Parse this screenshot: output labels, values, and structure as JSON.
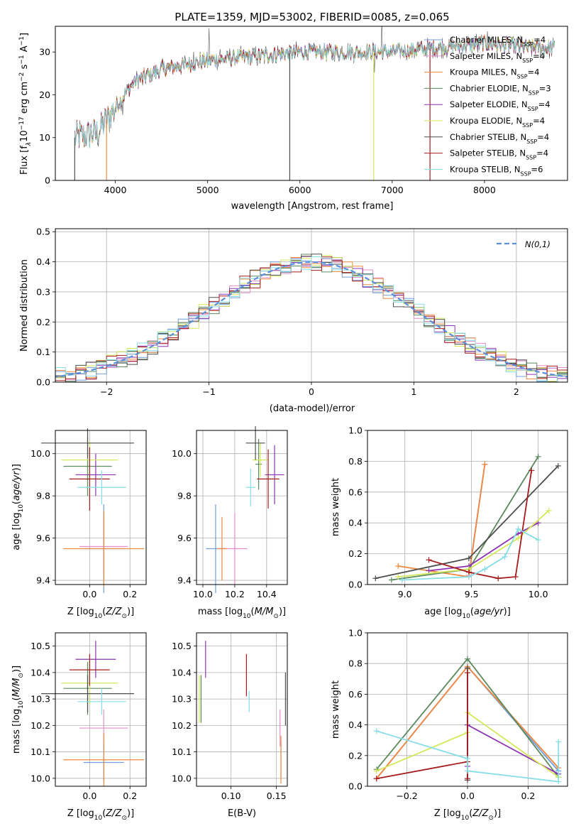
{
  "colors": [
    "#6f9fdc",
    "#e48fc9",
    "#ee8a3f",
    "#5a8a5c",
    "#8c35b0",
    "#d4e85a",
    "#4d4d4d",
    "#a61c1c",
    "#86dde6"
  ],
  "legend": [
    "Chabrier MILES, N_SSP=4",
    "Salpeter MILES, N_SSP=4",
    "Kroupa MILES, N_SSP=4",
    "Chabrier ELODIE, N_SSP=3",
    "Salpeter ELODIE, N_SSP=4",
    "Kroupa ELODIE, N_SSP=4",
    "Chabrier STELIB, N_SSP=4",
    "Salpeter STELIB, N_SSP=4",
    "Kroupa STELIB, N_SSP=6"
  ],
  "chart_data": [
    {
      "id": "spectrum",
      "type": "line",
      "title": "PLATE=1359, MJD=53002, FIBERID=0085, z=0.065",
      "xlabel": "wavelength [Angstrom, rest frame]",
      "ylabel": "Flux [f_λ10^-17 erg cm^-2 s^-1 A^-1]",
      "xlim": [
        3350,
        8900
      ],
      "ylim": [
        0,
        36
      ],
      "xticks": [
        4000,
        5000,
        6000,
        7000,
        8000
      ],
      "yticks": [
        0,
        10,
        20,
        30
      ],
      "continuum": {
        "x": [
          3560,
          3800,
          4000,
          4200,
          4500,
          5000,
          5500,
          6000,
          6500,
          7000,
          7500,
          8000,
          8500,
          8750
        ],
        "y": [
          10,
          11,
          17,
          23,
          26,
          28,
          29,
          30,
          30,
          30,
          31,
          32,
          31,
          31
        ]
      },
      "legend_loc": "right"
    },
    {
      "id": "residuals",
      "type": "histogram",
      "xlabel": "(data-model)/error",
      "ylabel": "Normed distribution",
      "xlim": [
        -2.5,
        2.5
      ],
      "ylim": [
        0,
        0.51
      ],
      "xticks": [
        -2,
        -1,
        0,
        1,
        2
      ],
      "yticks": [
        0,
        0.1,
        0.2,
        0.3,
        0.4,
        0.5
      ],
      "bin_width": 0.1,
      "normal_legend": "N(0,1)",
      "legend_loc": "top-right"
    },
    {
      "id": "age-vs-Z",
      "type": "errorbar",
      "xlabel": "Z [log10(Z/Z⊙)]",
      "ylabel": "age  [log10(age/yr)]",
      "xlim": [
        -0.17,
        0.28
      ],
      "ylim": [
        9.38,
        10.11
      ],
      "xticks": [
        0.0,
        0.2
      ],
      "yticks": [
        9.4,
        9.6,
        9.8,
        10.0
      ],
      "points": [
        {
          "x": 0.07,
          "y": 9.55,
          "xerr": 0.1,
          "yerr": 0.21
        },
        {
          "x": 0.07,
          "y": 9.56,
          "xerr": 0.12,
          "yerr": 0.15
        },
        {
          "x": 0.07,
          "y": 9.55,
          "xerr": 0.2,
          "yerr": 0.18
        },
        {
          "x": -0.01,
          "y": 9.94,
          "xerr": 0.12,
          "yerr": 0.14
        },
        {
          "x": 0.03,
          "y": 9.9,
          "xerr": 0.1,
          "yerr": 0.1
        },
        {
          "x": 0.0,
          "y": 9.97,
          "xerr": 0.14,
          "yerr": 0.09
        },
        {
          "x": -0.01,
          "y": 10.05,
          "xerr": 0.23,
          "yerr": 0.07
        },
        {
          "x": 0.0,
          "y": 9.88,
          "xerr": 0.1,
          "yerr": 0.15
        },
        {
          "x": 0.06,
          "y": 9.84,
          "xerr": 0.12,
          "yerr": 0.08
        }
      ]
    },
    {
      "id": "age-vs-mass",
      "type": "errorbar",
      "xlabel": "mass [log10(M/M⊙)]",
      "ylabel": "",
      "xlim": [
        9.96,
        10.53
      ],
      "ylim": [
        9.38,
        10.11
      ],
      "xticks": [
        10.0,
        10.2,
        10.4
      ],
      "yticks": [
        9.4,
        9.6,
        9.8,
        10.0
      ],
      "points": [
        {
          "x": 10.08,
          "y": 9.55,
          "xerr": 0.06,
          "yerr": 0.21
        },
        {
          "x": 10.2,
          "y": 9.55,
          "xerr": 0.08,
          "yerr": 0.17
        },
        {
          "x": 10.12,
          "y": 9.55,
          "xerr": 0.03,
          "yerr": 0.15
        },
        {
          "x": 10.35,
          "y": 9.95,
          "xerr": 0.02,
          "yerr": 0.12
        },
        {
          "x": 10.45,
          "y": 9.9,
          "xerr": 0.06,
          "yerr": 0.14
        },
        {
          "x": 10.36,
          "y": 9.97,
          "xerr": 0.05,
          "yerr": 0.08
        },
        {
          "x": 10.33,
          "y": 10.05,
          "xerr": 0.06,
          "yerr": 0.08
        },
        {
          "x": 10.41,
          "y": 9.88,
          "xerr": 0.07,
          "yerr": 0.14
        },
        {
          "x": 10.3,
          "y": 9.84,
          "xerr": 0.03,
          "yerr": 0.09
        }
      ]
    },
    {
      "id": "weight-vs-age",
      "type": "line",
      "xlabel": "age  [log10(age/yr)]",
      "ylabel": "mass weight",
      "xlim": [
        8.72,
        10.22
      ],
      "ylim": [
        0,
        1.0
      ],
      "xticks": [
        9.0,
        9.5,
        10.0
      ],
      "yticks": [
        0.0,
        0.2,
        0.4,
        0.6,
        0.8,
        1.0
      ],
      "series": [
        {
          "x": [
            9.48,
            9.6
          ],
          "y": [
            0.06,
            0.78
          ]
        },
        {
          "x": [
            9.48,
            9.6
          ],
          "y": [
            0.06,
            0.78
          ]
        },
        {
          "x": [
            8.95,
            9.48,
            9.6
          ],
          "y": [
            0.12,
            0.05,
            0.78
          ]
        },
        {
          "x": [
            8.9,
            9.48,
            10.0
          ],
          "y": [
            0.03,
            0.1,
            0.83
          ]
        },
        {
          "x": [
            9.18,
            9.48,
            9.85,
            10.0
          ],
          "y": [
            0.09,
            0.12,
            0.33,
            0.4
          ]
        },
        {
          "x": [
            8.95,
            9.48,
            9.85,
            10.08
          ],
          "y": [
            0.05,
            0.1,
            0.3,
            0.48
          ]
        },
        {
          "x": [
            8.78,
            9.48,
            10.15
          ],
          "y": [
            0.04,
            0.17,
            0.77
          ]
        },
        {
          "x": [
            9.18,
            9.48,
            9.7,
            9.83,
            9.95
          ],
          "y": [
            0.16,
            0.08,
            0.04,
            0.05,
            0.74
          ]
        },
        {
          "x": [
            8.98,
            9.48,
            9.6,
            9.75,
            9.85,
            10.0
          ],
          "y": [
            0.03,
            0.05,
            0.1,
            0.18,
            0.36,
            0.29
          ]
        }
      ]
    },
    {
      "id": "mass-vs-Z",
      "type": "errorbar",
      "xlabel": "Z [log10(Z/Z⊙)]",
      "ylabel": "mass [log10(M/M⊙)]",
      "xlim": [
        -0.17,
        0.28
      ],
      "ylim": [
        9.97,
        10.55
      ],
      "xticks": [
        0.0,
        0.2
      ],
      "yticks": [
        10.0,
        10.1,
        10.2,
        10.3,
        10.4,
        10.5
      ],
      "points": [
        {
          "x": 0.07,
          "y": 10.06,
          "xerr": 0.1,
          "yerr": 0.07
        },
        {
          "x": 0.07,
          "y": 10.19,
          "xerr": 0.12,
          "yerr": 0.07
        },
        {
          "x": 0.07,
          "y": 10.07,
          "xerr": 0.2,
          "yerr": 0.1
        },
        {
          "x": -0.01,
          "y": 10.34,
          "xerr": 0.12,
          "yerr": 0.1
        },
        {
          "x": 0.03,
          "y": 10.45,
          "xerr": 0.1,
          "yerr": 0.07
        },
        {
          "x": 0.0,
          "y": 10.36,
          "xerr": 0.14,
          "yerr": 0.08
        },
        {
          "x": -0.01,
          "y": 10.32,
          "xerr": 0.23,
          "yerr": 0.07
        },
        {
          "x": 0.0,
          "y": 10.41,
          "xerr": 0.1,
          "yerr": 0.06
        },
        {
          "x": 0.06,
          "y": 10.29,
          "xerr": 0.12,
          "yerr": 0.05
        }
      ]
    },
    {
      "id": "mass-vs-EBV",
      "type": "errorbar",
      "xlabel": "E(B-V)",
      "ylabel": "",
      "xlim": [
        0.062,
        0.162
      ],
      "ylim": [
        9.97,
        10.55
      ],
      "xticks": [
        0.1,
        0.15
      ],
      "yticks": [
        10.0,
        10.1,
        10.2,
        10.3,
        10.4,
        10.5
      ],
      "points": [
        {
          "x": 0.155,
          "y": 10.07,
          "xerr": 0,
          "yerr": 0.07
        },
        {
          "x": 0.154,
          "y": 10.19,
          "xerr": 0,
          "yerr": 0.07
        },
        {
          "x": 0.155,
          "y": 10.07,
          "xerr": 0,
          "yerr": 0.09
        },
        {
          "x": 0.067,
          "y": 10.3,
          "xerr": 0,
          "yerr": 0.09
        },
        {
          "x": 0.072,
          "y": 10.45,
          "xerr": 0,
          "yerr": 0.07
        },
        {
          "x": 0.065,
          "y": 10.3,
          "xerr": 0,
          "yerr": 0.09
        },
        {
          "x": 0.16,
          "y": 10.3,
          "xerr": 0,
          "yerr": 0.1
        },
        {
          "x": 0.117,
          "y": 10.39,
          "xerr": 0,
          "yerr": 0.08
        },
        {
          "x": 0.12,
          "y": 10.29,
          "xerr": 0,
          "yerr": 0.04
        }
      ]
    },
    {
      "id": "weight-vs-Z",
      "type": "line",
      "xlabel": "Z [log10(Z/Z⊙)]",
      "ylabel": "mass weight",
      "xlim": [
        -0.33,
        0.33
      ],
      "ylim": [
        0,
        1.0
      ],
      "xticks": [
        -0.2,
        0.0,
        0.2
      ],
      "yticks": [
        0.0,
        0.2,
        0.4,
        0.6,
        0.8,
        1.0
      ],
      "series": [
        {
          "x": [
            -0.3,
            0.0,
            0.3
          ],
          "y": [
            0.05,
            0.78,
            0.1
          ]
        },
        {
          "x": [
            -0.3,
            0.0,
            0.3
          ],
          "y": [
            0.05,
            0.78,
            0.12
          ]
        },
        {
          "x": [
            -0.3,
            0.0,
            0.3
          ],
          "y": [
            0.05,
            0.78,
            0.12
          ]
        },
        {
          "x": [
            -0.3,
            0.0,
            0.3
          ],
          "y": [
            0.11,
            0.83,
            0.06
          ]
        },
        {
          "x": [
            0.0,
            0.0,
            0.3
          ],
          "y": [
            0.13,
            0.4,
            0.08
          ]
        },
        {
          "x": [
            -0.3,
            0.0,
            0.0,
            0.3
          ],
          "y": [
            0.1,
            0.35,
            0.48,
            0.06
          ]
        },
        {
          "x": [
            0.0,
            0.0
          ],
          "y": [
            0.04,
            0.77
          ]
        },
        {
          "x": [
            -0.3,
            0.0,
            0.0,
            0.0
          ],
          "y": [
            0.05,
            0.16,
            0.05,
            0.74
          ]
        },
        {
          "x": [
            -0.3,
            0.0,
            0.0,
            0.3,
            0.3
          ],
          "y": [
            0.36,
            0.18,
            0.1,
            0.03,
            0.29
          ]
        }
      ]
    }
  ]
}
